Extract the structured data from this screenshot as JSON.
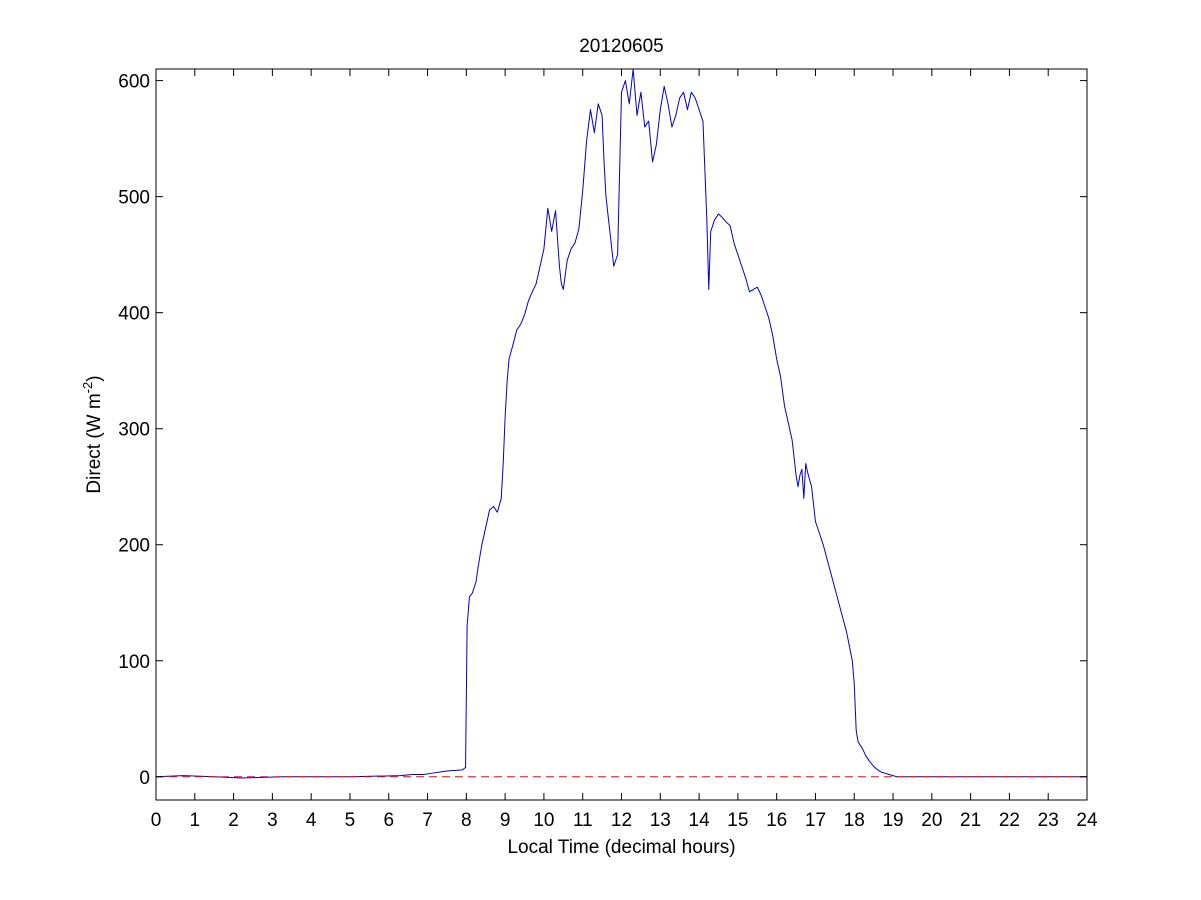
{
  "chart_data": {
    "type": "line",
    "title": "20120605",
    "xlabel": "Local Time (decimal hours)",
    "ylabel": {
      "prefix": "Direct (W m",
      "superscript": "-2",
      "suffix": ")"
    },
    "xlim": [
      0,
      24
    ],
    "ylim": [
      -20,
      610
    ],
    "xticks": [
      0,
      1,
      2,
      3,
      4,
      5,
      6,
      7,
      8,
      9,
      10,
      11,
      12,
      13,
      14,
      15,
      16,
      17,
      18,
      19,
      20,
      21,
      22,
      23,
      24
    ],
    "yticks": [
      0,
      100,
      200,
      300,
      400,
      500,
      600
    ],
    "grid": false,
    "series": [
      {
        "color": "#0000cc",
        "style": "solid",
        "x": [
          0,
          0.7,
          1.5,
          2.2,
          3.3,
          5,
          6.3,
          6.6,
          6.9,
          7.1,
          7.5,
          7.9,
          7.98,
          8.02,
          8.08,
          8.15,
          8.25,
          8.3,
          8.4,
          8.5,
          8.6,
          8.7,
          8.8,
          8.9,
          8.95,
          9,
          9.05,
          9.1,
          9.2,
          9.3,
          9.4,
          9.5,
          9.6,
          9.7,
          9.8,
          9.9,
          10,
          10.1,
          10.2,
          10.3,
          10.4,
          10.45,
          10.5,
          10.6,
          10.7,
          10.8,
          10.9,
          11,
          11.1,
          11.2,
          11.3,
          11.4,
          11.5,
          11.55,
          11.6,
          11.7,
          11.8,
          11.9,
          12,
          12.1,
          12.2,
          12.3,
          12.4,
          12.5,
          12.6,
          12.7,
          12.8,
          12.9,
          13,
          13.1,
          13.2,
          13.3,
          13.4,
          13.5,
          13.6,
          13.7,
          13.8,
          13.9,
          14,
          14.1,
          14.2,
          14.25,
          14.3,
          14.4,
          14.5,
          14.6,
          14.7,
          14.8,
          14.9,
          15,
          15.1,
          15.2,
          15.3,
          15.4,
          15.5,
          15.6,
          15.7,
          15.8,
          15.9,
          16,
          16.1,
          16.2,
          16.3,
          16.4,
          16.5,
          16.55,
          16.6,
          16.65,
          16.7,
          16.75,
          16.8,
          16.9,
          17,
          17.2,
          17.4,
          17.6,
          17.8,
          17.95,
          18,
          18.05,
          18.1,
          18.2,
          18.3,
          18.4,
          18.5,
          18.6,
          18.7,
          18.8,
          18.9,
          19,
          19.1,
          19.3,
          20,
          24
        ],
        "y": [
          0,
          1,
          0,
          -1,
          0,
          0,
          1,
          2,
          2,
          3,
          5,
          6,
          8,
          130,
          155,
          158,
          168,
          180,
          200,
          215,
          230,
          233,
          228,
          240,
          270,
          310,
          340,
          360,
          372,
          385,
          390,
          398,
          410,
          418,
          425,
          440,
          455,
          490,
          470,
          488,
          440,
          425,
          420,
          445,
          455,
          460,
          472,
          505,
          548,
          575,
          555,
          580,
          570,
          530,
          500,
          470,
          440,
          450,
          590,
          600,
          580,
          610,
          570,
          590,
          560,
          565,
          530,
          545,
          575,
          595,
          580,
          560,
          570,
          585,
          590,
          575,
          590,
          585,
          575,
          565,
          480,
          420,
          470,
          480,
          485,
          482,
          478,
          475,
          460,
          450,
          440,
          430,
          418,
          420,
          422,
          415,
          405,
          395,
          380,
          360,
          345,
          320,
          305,
          290,
          260,
          250,
          260,
          265,
          240,
          270,
          262,
          250,
          220,
          200,
          175,
          150,
          125,
          100,
          80,
          40,
          30,
          25,
          18,
          13,
          9,
          6,
          4,
          3,
          2,
          1,
          0,
          0,
          0,
          0
        ]
      }
    ],
    "reference_lines": [
      {
        "y": 0,
        "color": "#ff0000",
        "style": "dashed"
      }
    ]
  }
}
